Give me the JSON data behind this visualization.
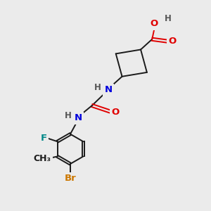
{
  "bg_color": "#ebebeb",
  "bond_color": "#1a1a1a",
  "atom_colors": {
    "O": "#e00000",
    "N": "#0000dd",
    "F": "#008888",
    "Br": "#cc7700",
    "H": "#555555",
    "C": "#1a1a1a"
  },
  "font_size": 9.5,
  "lw": 1.4,
  "ring_r": 0.72
}
